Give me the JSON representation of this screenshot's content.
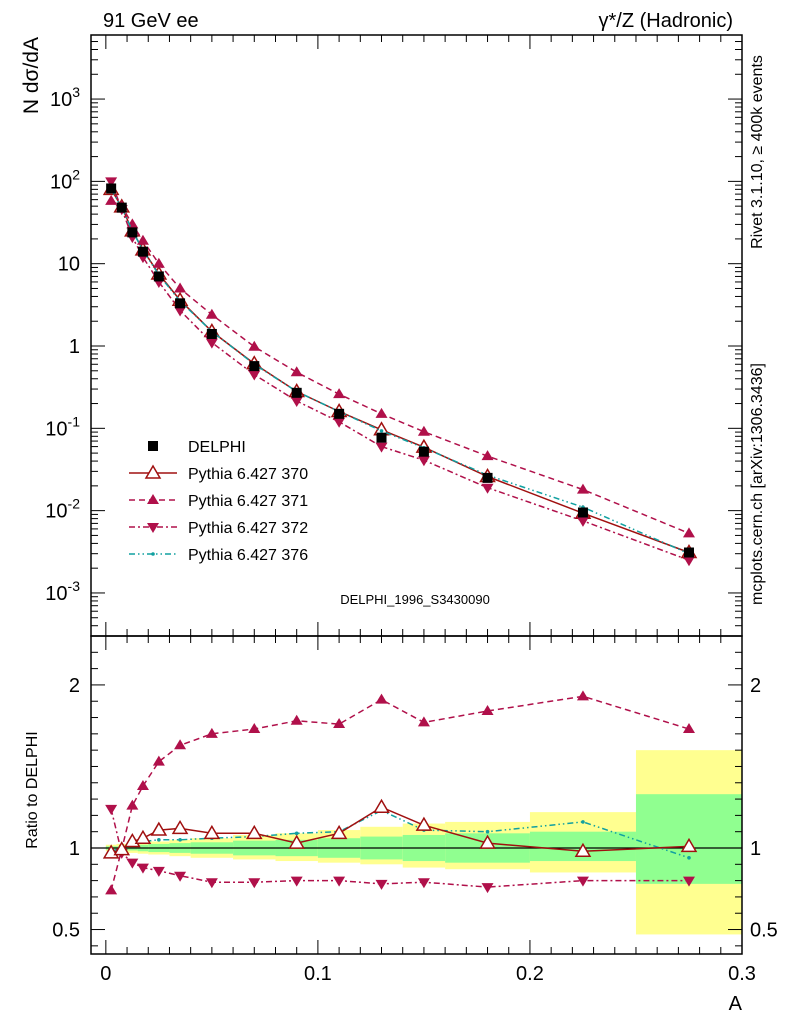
{
  "header": {
    "left": "91 GeV ee",
    "right": "γ*/Z (Hadronic)"
  },
  "side_labels": {
    "rivet": "Rivet 3.1.10, ≥ 400k events",
    "mcplots": "mcplots.cern.ch [arXiv:1306.3436]"
  },
  "watermark": "DELPHI_1996_S3430090",
  "colors": {
    "data": "#000000",
    "p370": "#a01010",
    "p371": "#b0104a",
    "p372": "#b0104a",
    "p376": "#10a0a0",
    "band_inner": "#90ff90",
    "band_outer": "#ffff90"
  },
  "chart_data": [
    {
      "type": "scatter",
      "panel": "main",
      "ylabel": "N dσ/dA",
      "yscale": "log",
      "ylim": [
        0.0003,
        6000
      ],
      "xlim": [
        -0.007,
        0.3
      ],
      "y_tick_labels": [
        "10^-3",
        "10^-2",
        "10^-1",
        "1",
        "10",
        "10^2",
        "10^3"
      ],
      "legend_position": "middle-left",
      "x": [
        0.0025,
        0.0075,
        0.0125,
        0.0175,
        0.025,
        0.035,
        0.05,
        0.07,
        0.09,
        0.11,
        0.13,
        0.15,
        0.18,
        0.225,
        0.275
      ],
      "series": [
        {
          "name": "DELPHI",
          "key": "data",
          "marker": "square",
          "values": [
            82,
            48,
            24,
            14,
            7.0,
            3.3,
            1.4,
            0.57,
            0.27,
            0.15,
            0.077,
            0.052,
            0.025,
            0.0095,
            0.0031
          ]
        },
        {
          "name": "Pythia 6.427 370",
          "key": "p370",
          "marker": "open-triangle",
          "line": "solid",
          "values": [
            80,
            49,
            25,
            14.7,
            7.5,
            3.6,
            1.5,
            0.61,
            0.28,
            0.16,
            0.096,
            0.059,
            0.026,
            0.0093,
            0.0031
          ]
        },
        {
          "name": "Pythia 6.427 371",
          "key": "p371",
          "marker": "triangle-up",
          "line": "dashed",
          "values": [
            58,
            50,
            30,
            19.0,
            10.0,
            5.0,
            2.4,
            0.98,
            0.48,
            0.26,
            0.15,
            0.091,
            0.046,
            0.018,
            0.0053
          ]
        },
        {
          "name": "Pythia 6.427 372",
          "key": "p372",
          "marker": "triangle-down",
          "line": "dashdot",
          "values": [
            100,
            46,
            21,
            12.0,
            6.0,
            2.7,
            1.1,
            0.45,
            0.215,
            0.12,
            0.06,
            0.041,
            0.019,
            0.0075,
            0.0025
          ]
        },
        {
          "name": "Pythia 6.427 376",
          "key": "p376",
          "marker": "dot",
          "line": "dashdotted",
          "values": [
            80,
            48,
            25,
            14.5,
            7.3,
            3.5,
            1.5,
            0.6,
            0.28,
            0.16,
            0.093,
            0.058,
            0.027,
            0.011,
            0.003
          ]
        }
      ]
    },
    {
      "type": "line",
      "panel": "ratio",
      "xlabel": "A",
      "ylabel": "Ratio to DELPHI",
      "ylim": [
        0.35,
        2.3
      ],
      "xlim": [
        -0.007,
        0.3
      ],
      "y_ticks": [
        0.5,
        1,
        2
      ],
      "x_ticks": [
        0,
        0.1,
        0.2,
        0.3
      ],
      "x": [
        0.0025,
        0.0075,
        0.0125,
        0.0175,
        0.025,
        0.035,
        0.05,
        0.07,
        0.09,
        0.11,
        0.13,
        0.15,
        0.18,
        0.225,
        0.275
      ],
      "bins": [
        [
          0,
          0.005
        ],
        [
          0.005,
          0.01
        ],
        [
          0.01,
          0.015
        ],
        [
          0.015,
          0.02
        ],
        [
          0.02,
          0.03
        ],
        [
          0.03,
          0.04
        ],
        [
          0.04,
          0.06
        ],
        [
          0.06,
          0.08
        ],
        [
          0.08,
          0.1
        ],
        [
          0.1,
          0.12
        ],
        [
          0.12,
          0.14
        ],
        [
          0.14,
          0.16
        ],
        [
          0.16,
          0.2
        ],
        [
          0.2,
          0.25
        ],
        [
          0.25,
          0.3
        ]
      ],
      "band_inner": [
        [
          0.99,
          1.01
        ],
        [
          0.99,
          1.01
        ],
        [
          0.985,
          1.015
        ],
        [
          0.98,
          1.02
        ],
        [
          0.975,
          1.025
        ],
        [
          0.97,
          1.03
        ],
        [
          0.965,
          1.035
        ],
        [
          0.955,
          1.045
        ],
        [
          0.95,
          1.05
        ],
        [
          0.94,
          1.06
        ],
        [
          0.93,
          1.07
        ],
        [
          0.92,
          1.08
        ],
        [
          0.91,
          1.09
        ],
        [
          0.92,
          1.1
        ],
        [
          0.78,
          1.33
        ]
      ],
      "band_outer": [
        [
          0.98,
          1.02
        ],
        [
          0.975,
          1.025
        ],
        [
          0.97,
          1.03
        ],
        [
          0.965,
          1.035
        ],
        [
          0.96,
          1.04
        ],
        [
          0.95,
          1.05
        ],
        [
          0.94,
          1.06
        ],
        [
          0.93,
          1.08
        ],
        [
          0.92,
          1.09
        ],
        [
          0.91,
          1.11
        ],
        [
          0.9,
          1.13
        ],
        [
          0.88,
          1.15
        ],
        [
          0.87,
          1.16
        ],
        [
          0.85,
          1.22
        ],
        [
          0.47,
          1.6
        ]
      ],
      "series": [
        {
          "name": "Pythia 6.427 370",
          "key": "p370",
          "values": [
            0.97,
            0.99,
            1.04,
            1.06,
            1.11,
            1.12,
            1.09,
            1.09,
            1.03,
            1.09,
            1.25,
            1.14,
            1.03,
            0.98,
            1.01
          ]
        },
        {
          "name": "Pythia 6.427 371",
          "key": "p371",
          "values": [
            0.74,
            0.99,
            1.26,
            1.38,
            1.53,
            1.63,
            1.7,
            1.73,
            1.78,
            1.76,
            1.91,
            1.77,
            1.84,
            1.93,
            1.73
          ]
        },
        {
          "name": "Pythia 6.427 372",
          "key": "p372",
          "values": [
            1.24,
            0.97,
            0.91,
            0.88,
            0.86,
            0.83,
            0.79,
            0.79,
            0.8,
            0.8,
            0.78,
            0.79,
            0.76,
            0.8,
            0.8
          ]
        },
        {
          "name": "Pythia 6.427 376",
          "key": "p376",
          "values": [
            0.98,
            1.0,
            1.03,
            1.04,
            1.05,
            1.05,
            1.06,
            1.07,
            1.09,
            1.1,
            1.23,
            1.11,
            1.1,
            1.16,
            0.94
          ]
        }
      ]
    }
  ]
}
